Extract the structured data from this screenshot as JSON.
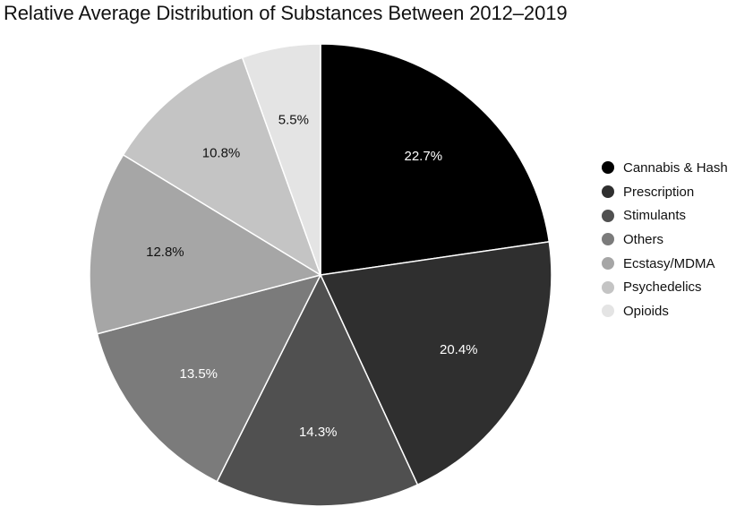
{
  "chart_data": {
    "type": "pie",
    "title": "Relative Average Distribution of Substances Between 2012–2019",
    "legend_position": "right",
    "slices": [
      {
        "label": "Cannabis & Hash",
        "value": 22.7,
        "value_label": "22.7%",
        "color": "#000000",
        "text_color": "#ffffff"
      },
      {
        "label": "Prescription",
        "value": 20.4,
        "value_label": "20.4%",
        "color": "#2f2f2f",
        "text_color": "#ffffff"
      },
      {
        "label": "Stimulants",
        "value": 14.3,
        "value_label": "14.3%",
        "color": "#505050",
        "text_color": "#ffffff"
      },
      {
        "label": "Others",
        "value": 13.5,
        "value_label": "13.5%",
        "color": "#7b7b7b",
        "text_color": "#ffffff"
      },
      {
        "label": "Ecstasy/MDMA",
        "value": 12.8,
        "value_label": "12.8%",
        "color": "#a6a6a6",
        "text_color": "#111111"
      },
      {
        "label": "Psychedelics",
        "value": 10.8,
        "value_label": "10.8%",
        "color": "#c4c4c4",
        "text_color": "#111111"
      },
      {
        "label": "Opioids",
        "value": 5.5,
        "value_label": "5.5%",
        "color": "#e4e4e4",
        "text_color": "#111111"
      }
    ]
  }
}
